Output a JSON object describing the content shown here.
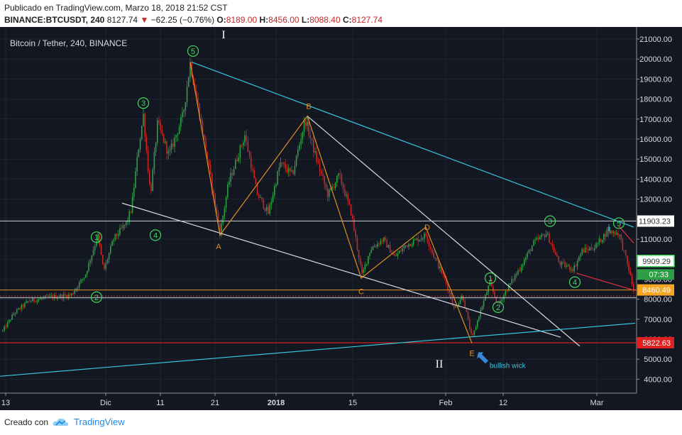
{
  "header": {
    "published": "Publicado en TradingView.com, Marzo 18, 2018 21:52 CST",
    "symbol": "BINANCE:BTCUSDT, 240",
    "last": "8127.74",
    "change": "−62.25 (−0.76%)",
    "o_label": "O:",
    "o": "8189.00",
    "h_label": "H:",
    "h": "8456.00",
    "l_label": "L:",
    "l": "8088.40",
    "c_label": "C:",
    "c": "8127.74"
  },
  "footer": {
    "created": "Creado con",
    "brand": "TradingView"
  },
  "colors": {
    "bg": "#131722",
    "up": "#2e9e44",
    "down": "#c62828",
    "orange": "#e09020",
    "cyan": "#36c6dc",
    "white": "#d8dbe0",
    "green": "#44d65c",
    "red": "#ff2020"
  },
  "chart_data": {
    "type": "candlestick",
    "title": "Bitcoin / Tether, 240, BINANCE",
    "ylim": [
      3500,
      21500
    ],
    "y_ticks": [
      "4000.00",
      "5000.00",
      "6000.00",
      "7000.00",
      "8000.00",
      "9000.00",
      "10000.00",
      "11000.00",
      "12000.00",
      "13000.00",
      "14000.00",
      "15000.00",
      "16000.00",
      "17000.00",
      "18000.00",
      "19000.00",
      "20000.00",
      "21000.00"
    ],
    "x_ticks": [
      "13",
      "Dic",
      "11",
      "21",
      "2018",
      "15",
      "Feb",
      "12",
      "Mar"
    ],
    "price_path": [
      [
        0,
        6200
      ],
      [
        20,
        7300
      ],
      [
        40,
        7900
      ],
      [
        70,
        8100
      ],
      [
        100,
        8200
      ],
      [
        120,
        9200
      ],
      [
        138,
        11200
      ],
      [
        146,
        9400
      ],
      [
        160,
        11000
      ],
      [
        178,
        11800
      ],
      [
        185,
        12500
      ],
      [
        195,
        15500
      ],
      [
        202,
        17200
      ],
      [
        212,
        13200
      ],
      [
        222,
        16800
      ],
      [
        238,
        15200
      ],
      [
        258,
        17200
      ],
      [
        268,
        19800
      ],
      [
        285,
        16500
      ],
      [
        298,
        13800
      ],
      [
        310,
        11300
      ],
      [
        322,
        13800
      ],
      [
        345,
        16200
      ],
      [
        362,
        13300
      ],
      [
        378,
        12300
      ],
      [
        395,
        14800
      ],
      [
        412,
        14200
      ],
      [
        430,
        17000
      ],
      [
        445,
        15100
      ],
      [
        462,
        13200
      ],
      [
        478,
        14200
      ],
      [
        495,
        12300
      ],
      [
        510,
        9200
      ],
      [
        522,
        10500
      ],
      [
        540,
        11000
      ],
      [
        556,
        10100
      ],
      [
        572,
        10700
      ],
      [
        600,
        11200
      ],
      [
        612,
        10100
      ],
      [
        628,
        8900
      ],
      [
        640,
        7500
      ],
      [
        652,
        8200
      ],
      [
        665,
        6000
      ],
      [
        676,
        7300
      ],
      [
        690,
        8800
      ],
      [
        702,
        7700
      ],
      [
        716,
        8600
      ],
      [
        735,
        9700
      ],
      [
        752,
        10800
      ],
      [
        770,
        11300
      ],
      [
        788,
        9800
      ],
      [
        808,
        9500
      ],
      [
        820,
        10400
      ],
      [
        838,
        10600
      ],
      [
        856,
        11400
      ],
      [
        872,
        11300
      ],
      [
        886,
        9500
      ],
      [
        893,
        8400
      ]
    ],
    "wave_labels": [
      {
        "text": "1",
        "kind": "wave",
        "x": 136,
        "y": 11100
      },
      {
        "text": "2",
        "kind": "wave",
        "x": 136,
        "y": 8100
      },
      {
        "text": "3",
        "kind": "wave",
        "x": 202,
        "y": 17800
      },
      {
        "text": "4",
        "kind": "wave",
        "x": 219,
        "y": 11200
      },
      {
        "text": "5",
        "kind": "wave",
        "x": 272,
        "y": 20400
      },
      {
        "text": "A",
        "kind": "abc",
        "x": 308,
        "y": 10650
      },
      {
        "text": "B",
        "kind": "abc",
        "x": 435,
        "y": 17650
      },
      {
        "text": "C",
        "kind": "abc",
        "x": 509,
        "y": 8400
      },
      {
        "text": "D",
        "kind": "abc",
        "x": 602,
        "y": 11600
      },
      {
        "text": "E",
        "kind": "abc",
        "x": 665,
        "y": 5300
      },
      {
        "text": "1",
        "kind": "wave",
        "x": 691,
        "y": 9050
      },
      {
        "text": "2",
        "kind": "wave",
        "x": 702,
        "y": 7600
      },
      {
        "text": "3",
        "kind": "wave",
        "x": 775,
        "y": 11900
      },
      {
        "text": "4",
        "kind": "wave",
        "x": 810,
        "y": 8850
      },
      {
        "text": "5",
        "kind": "wave",
        "x": 872,
        "y": 11800
      },
      {
        "text": "i",
        "kind": "small",
        "x": 858,
        "y": 11550
      }
    ],
    "degree_labels": [
      {
        "text": "I",
        "x": 315,
        "y": 21250
      },
      {
        "text": "II",
        "x": 619,
        "y": 4800
      }
    ],
    "annotation": {
      "text": "bullish wick",
      "x": 690,
      "y": 4850
    },
    "orange_path": [
      [
        268,
        19850
      ],
      [
        310,
        11200
      ],
      [
        433,
        17150
      ],
      [
        509,
        9050
      ],
      [
        600,
        11600
      ],
      [
        665,
        5800
      ]
    ],
    "white_lines": [
      [
        [
          172,
          12800
        ],
        [
          790,
          6100
        ]
      ],
      [
        [
          433,
          17150
        ],
        [
          817,
          5650
        ]
      ]
    ],
    "cyan_lines": [
      [
        [
          270,
          19850
        ],
        [
          893,
          11600
        ]
      ],
      [
        [
          0,
          4150
        ],
        [
          895,
          6800
        ]
      ]
    ],
    "red_lines": [
      [
        [
          812,
          9300
        ],
        [
          893,
          8450
        ]
      ],
      [
        [
          872,
          11650
        ],
        [
          893,
          10800
        ]
      ]
    ],
    "h_lines": [
      {
        "price": 11903.23,
        "color": "#c8ccd4",
        "dashed": false
      },
      {
        "price": 8460.49,
        "color": "#e09020",
        "dashed": false
      },
      {
        "price": 8150,
        "color": "#c04040",
        "dashed": true
      },
      {
        "price": 8070,
        "color": "#c8ccd4",
        "dashed": false
      },
      {
        "price": 5822.63,
        "color": "#ff2020",
        "dashed": false
      }
    ],
    "price_tags": [
      {
        "text": "11903.23",
        "price": 11903.23,
        "bg": "#ffffff",
        "fg": "#333333"
      },
      {
        "text": "9909.29",
        "price": 9909.29,
        "bg": "#ffffff",
        "fg": "#333333",
        "border": "#44d65c"
      },
      {
        "text": "8460.49",
        "price": 8460.49,
        "bg": "#f5a623",
        "fg": "#ffffff"
      },
      {
        "text": "5822.63",
        "price": 5822.63,
        "bg": "#e02020",
        "fg": "#ffffff"
      }
    ],
    "last_tag": {
      "text": "07:33",
      "price": 9250,
      "bg": "#2e9e44",
      "fg": "#ffffff"
    }
  }
}
